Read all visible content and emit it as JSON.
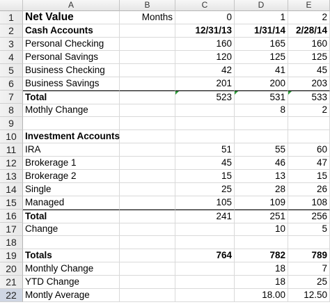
{
  "columns": [
    "A",
    "B",
    "C",
    "D",
    "E"
  ],
  "rows": [
    {
      "n": "1",
      "c": [
        "Net Value",
        "Months",
        "0",
        "1",
        "2"
      ]
    },
    {
      "n": "2",
      "c": [
        "Cash Accounts",
        "",
        "12/31/13",
        "1/31/14",
        "2/28/14"
      ]
    },
    {
      "n": "3",
      "c": [
        "Personal Checking",
        "",
        "160",
        "165",
        "160"
      ]
    },
    {
      "n": "4",
      "c": [
        "Personal Savings",
        "",
        "120",
        "125",
        "125"
      ]
    },
    {
      "n": "5",
      "c": [
        "Business Checking",
        "",
        "42",
        "41",
        "45"
      ]
    },
    {
      "n": "6",
      "c": [
        "Business Savings",
        "",
        "201",
        "200",
        "203"
      ]
    },
    {
      "n": "7",
      "c": [
        "Total",
        "",
        "523",
        "531",
        "533"
      ]
    },
    {
      "n": "8",
      "c": [
        "Mothly Change",
        "",
        "",
        "8",
        "2"
      ]
    },
    {
      "n": "9",
      "c": [
        "",
        "",
        "",
        "",
        ""
      ]
    },
    {
      "n": "10",
      "c": [
        "Investment Accounts",
        "",
        "",
        "",
        ""
      ]
    },
    {
      "n": "11",
      "c": [
        "IRA",
        "",
        "51",
        "55",
        "60"
      ]
    },
    {
      "n": "12",
      "c": [
        "Brokerage 1",
        "",
        "45",
        "46",
        "47"
      ]
    },
    {
      "n": "13",
      "c": [
        "Brokerage 2",
        "",
        "15",
        "13",
        "15"
      ]
    },
    {
      "n": "14",
      "c": [
        "Single",
        "",
        "25",
        "28",
        "26"
      ]
    },
    {
      "n": "15",
      "c": [
        "Managed",
        "",
        "105",
        "109",
        "108"
      ]
    },
    {
      "n": "16",
      "c": [
        "Total",
        "",
        "241",
        "251",
        "256"
      ]
    },
    {
      "n": "17",
      "c": [
        "Change",
        "",
        "",
        "10",
        "5"
      ]
    },
    {
      "n": "18",
      "c": [
        "",
        "",
        "",
        "",
        ""
      ]
    },
    {
      "n": "19",
      "c": [
        "Totals",
        "",
        "764",
        "782",
        "789"
      ]
    },
    {
      "n": "20",
      "c": [
        "Monthly Change",
        "",
        "",
        "18",
        "7"
      ]
    },
    {
      "n": "21",
      "c": [
        "YTD Change",
        "",
        "",
        "18",
        "25"
      ]
    },
    {
      "n": "22",
      "c": [
        "Montly Average",
        "",
        "",
        "18.00",
        "12.50"
      ]
    }
  ],
  "colors": {
    "grid_line": "#d9d9d9",
    "header_bg": "#e6e6e6",
    "selected_row_header": "#cfd6e3",
    "error_indicator": "#2e9c3a"
  },
  "selected_row": "22"
}
